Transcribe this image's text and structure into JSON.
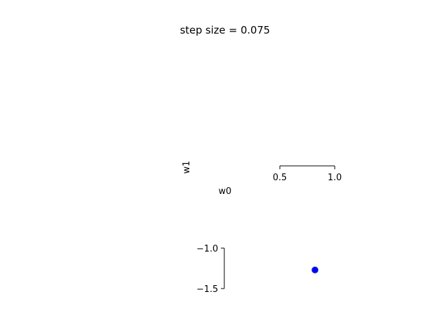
{
  "chart_data": {
    "type": "scatter",
    "title": "step size = 0.075",
    "xlabel": "w0",
    "ylabel": "w1",
    "x_ticks": [
      {
        "value": 0.5,
        "label": "0.5"
      },
      {
        "value": 1.0,
        "label": "1.0"
      }
    ],
    "y_ticks": [
      {
        "value": -1.0,
        "label": "−1.0"
      },
      {
        "value": -1.5,
        "label": "−1.5"
      }
    ],
    "points": [
      {
        "x": 0.82,
        "y": -1.27
      }
    ],
    "grid": false,
    "colors": {
      "point_fill": "#0000ff",
      "point_edge": "#1f3fbf"
    }
  }
}
